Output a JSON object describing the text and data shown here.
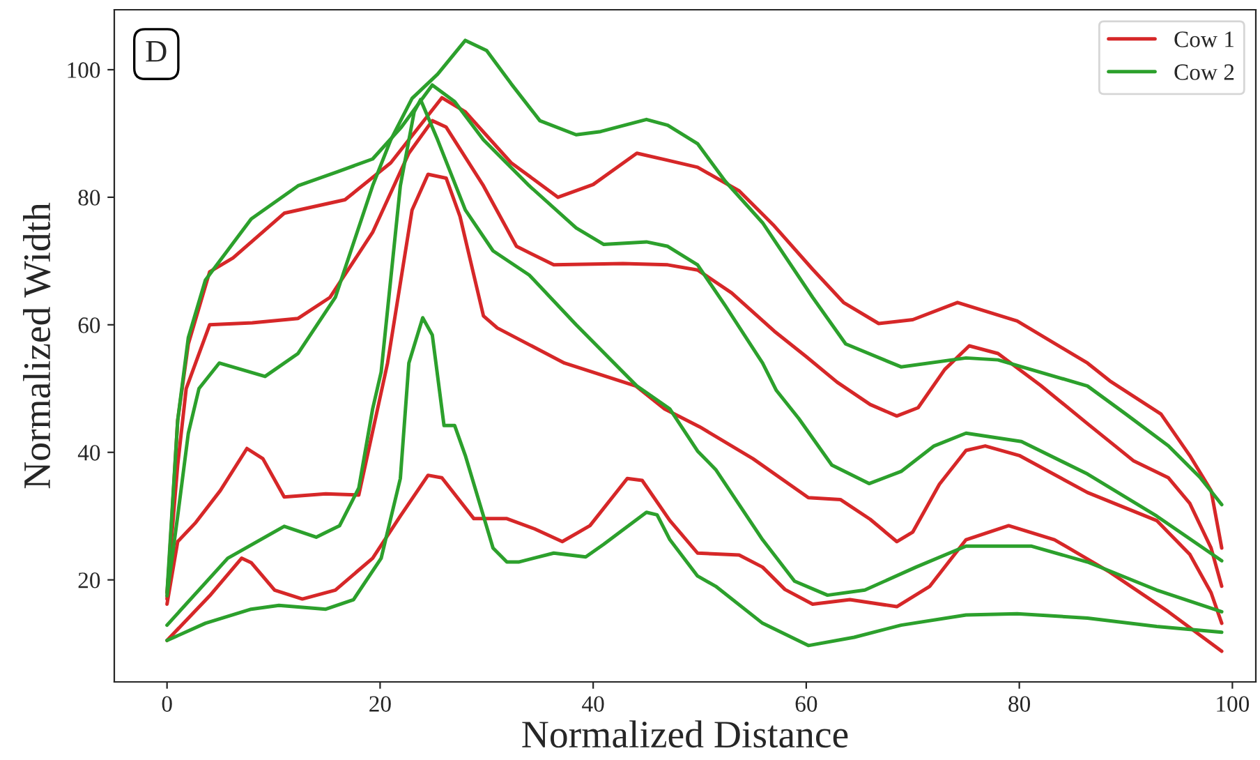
{
  "chart_data": {
    "type": "line",
    "xlabel": "Normalized Distance",
    "ylabel": "Normalized Width",
    "annotations": [
      "D"
    ],
    "xlim": [
      -4.95,
      102.2
    ],
    "ylim": [
      4,
      109.4
    ],
    "xticks": [
      0,
      20,
      40,
      60,
      80,
      100
    ],
    "yticks": [
      20,
      40,
      60,
      80,
      100
    ],
    "grid": false,
    "legend": "top right",
    "marker": "none",
    "line_style": "solid",
    "series": [
      {
        "name": "Cow 1",
        "color": "#d62728",
        "x": [
          0,
          1,
          2,
          4,
          6.2,
          11,
          16.7,
          21,
          25.8,
          28,
          32.3,
          36.7,
          40,
          44.1,
          47,
          49.8,
          53.7,
          57,
          60.6,
          63.5,
          66.8,
          70,
          74.2,
          79.8,
          86.4,
          88.5,
          93.3,
          96,
          98,
          99
        ],
        "values": [
          17,
          45,
          57,
          68.3,
          70.5,
          77.5,
          79.6,
          85.4,
          95.6,
          93.4,
          85.4,
          80,
          82,
          86.9,
          85.8,
          84.7,
          81,
          75.5,
          68.7,
          63.5,
          60.2,
          60.8,
          63.5,
          60.6,
          54,
          51.2,
          46,
          39.5,
          34,
          25
        ]
      },
      {
        "color": "#d62728",
        "x": [
          0,
          1,
          1.8,
          4,
          8,
          12.3,
          15.3,
          19.3,
          22.7,
          24.9,
          26.2,
          29.7,
          32.8,
          36.3,
          42.8,
          47,
          49.8,
          53,
          57,
          60,
          62.9,
          66,
          68.5,
          70.5,
          73,
          75.3,
          78,
          82,
          86.4,
          90.7,
          94,
          96,
          98,
          99
        ],
        "values": [
          18,
          38,
          50,
          60,
          60.3,
          61,
          64.3,
          74.5,
          86.9,
          92,
          91,
          81.8,
          72.3,
          69.4,
          69.6,
          69.4,
          68.6,
          65,
          59,
          55,
          51,
          47.5,
          45.7,
          47,
          53,
          56.7,
          55.5,
          50.5,
          44.5,
          38.7,
          36,
          32,
          25,
          19
        ]
      },
      {
        "color": "#d62728",
        "x": [
          0,
          1,
          2.7,
          5,
          7.5,
          9,
          11,
          14.9,
          18,
          20.7,
          23,
          24.5,
          26.2,
          27.5,
          29.7,
          31,
          37.3,
          44,
          46.7,
          50,
          55,
          60.2,
          63.2,
          66,
          68.5,
          70,
          72.5,
          75,
          76.8,
          80,
          86.4,
          92.9,
          96,
          98,
          99
        ],
        "values": [
          16.2,
          26,
          29,
          34,
          40.6,
          39,
          33,
          33.5,
          33.3,
          54,
          78,
          83.6,
          83,
          77,
          61.4,
          59.5,
          54,
          50.4,
          46.8,
          44,
          39,
          32.9,
          32.6,
          29.5,
          26,
          27.5,
          35,
          40.3,
          41,
          39.5,
          33.7,
          29.3,
          24,
          18,
          13.2
        ]
      },
      {
        "color": "#d62728",
        "x": [
          0,
          4,
          7,
          7.9,
          10.1,
          12.7,
          15.8,
          19.3,
          21.9,
          24.5,
          25.8,
          28.8,
          31.9,
          34.5,
          37.1,
          39.7,
          43.2,
          44.6,
          47.2,
          49.8,
          53.7,
          55.9,
          58,
          60.6,
          64.1,
          68.5,
          71.6,
          75,
          79,
          83.3,
          88.5,
          94,
          99
        ],
        "values": [
          10.5,
          17.5,
          23.4,
          22.7,
          18.4,
          17,
          18.4,
          23.4,
          30,
          36.4,
          36,
          29.6,
          29.6,
          28,
          26,
          28.5,
          35.9,
          35.6,
          29.3,
          24.2,
          23.9,
          22,
          18.5,
          16.2,
          16.9,
          15.8,
          19,
          26.3,
          28.5,
          26.3,
          21.2,
          15,
          8.8
        ]
      },
      {
        "name": "Cow 2",
        "color": "#2ca02c",
        "x": [
          0,
          1,
          2,
          3,
          4.9,
          9.2,
          12.3,
          15.8,
          19.3,
          21,
          23,
          25.4,
          28,
          30,
          32.3,
          35,
          38.4,
          40.7,
          45,
          47,
          49.8,
          52.4,
          55.9,
          60.6,
          63.7,
          68.9,
          75,
          78,
          86.4,
          90,
          94,
          97,
          99
        ],
        "values": [
          17.5,
          30,
          43,
          50,
          54,
          51.9,
          55.5,
          64.3,
          81.8,
          89,
          95.5,
          99.3,
          104.6,
          103,
          97.8,
          92,
          89.8,
          90.3,
          92.2,
          91.3,
          88.4,
          82.5,
          76,
          64.3,
          57,
          53.4,
          54.8,
          54.5,
          50.4,
          46,
          41,
          36,
          31.8
        ]
      },
      {
        "color": "#2ca02c",
        "x": [
          0,
          1,
          2,
          3.6,
          7.9,
          12.3,
          16,
          19.3,
          22,
          24.9,
          27,
          29.7,
          34,
          38.4,
          41,
          45,
          47,
          49.8,
          52.4,
          55.9,
          57.2,
          59.3,
          62.4,
          65.9,
          68.9,
          72,
          75,
          80.2,
          86.4,
          92.9,
          99
        ],
        "values": [
          18,
          45,
          58,
          67,
          76.6,
          81.8,
          84,
          86,
          91,
          97.6,
          95,
          89,
          81.8,
          75.2,
          72.6,
          73,
          72.3,
          69.4,
          63,
          54,
          49.7,
          45.3,
          38,
          35.1,
          37,
          41,
          43,
          41.7,
          36.6,
          30,
          23
        ]
      },
      {
        "color": "#2ca02c",
        "x": [
          0,
          5.7,
          11,
          14,
          16.2,
          18,
          19.3,
          20.1,
          21.9,
          23.2,
          23.8,
          25.4,
          28,
          30.6,
          34,
          38.4,
          44.1,
          47.2,
          49.8,
          51.5,
          55.9,
          58.9,
          62,
          65.5,
          70.3,
          75,
          81.1,
          86.4,
          92.9,
          99
        ],
        "values": [
          12.9,
          23.4,
          28.4,
          26.7,
          28.5,
          34.4,
          46.8,
          52.6,
          81.8,
          93.4,
          95.3,
          89,
          78,
          71.6,
          67.8,
          60,
          50.4,
          46.8,
          40.2,
          37.3,
          26.3,
          19.8,
          17.6,
          18.4,
          22,
          25.3,
          25.3,
          22.8,
          18.4,
          15
        ]
      },
      {
        "color": "#2ca02c",
        "x": [
          0,
          3.6,
          7.9,
          10.5,
          14.9,
          17.5,
          20.1,
          21.9,
          22.7,
          24,
          24.9,
          26,
          27,
          28,
          30.6,
          31.9,
          33,
          36.3,
          39.3,
          41,
          45,
          46,
          47.2,
          49.8,
          51.5,
          55.9,
          60.2,
          64.5,
          68.9,
          75,
          79.8,
          86.4,
          92.9,
          99
        ],
        "values": [
          10.5,
          13.2,
          15.4,
          16,
          15.4,
          16.9,
          23.4,
          35.9,
          54,
          61.1,
          58.4,
          44.2,
          44.2,
          39.5,
          25,
          22.8,
          22.8,
          24.2,
          23.6,
          25.6,
          30.6,
          30.2,
          26.3,
          20.6,
          19,
          13.2,
          9.7,
          11,
          12.9,
          14.5,
          14.7,
          14,
          12.7,
          11.8
        ]
      }
    ]
  }
}
